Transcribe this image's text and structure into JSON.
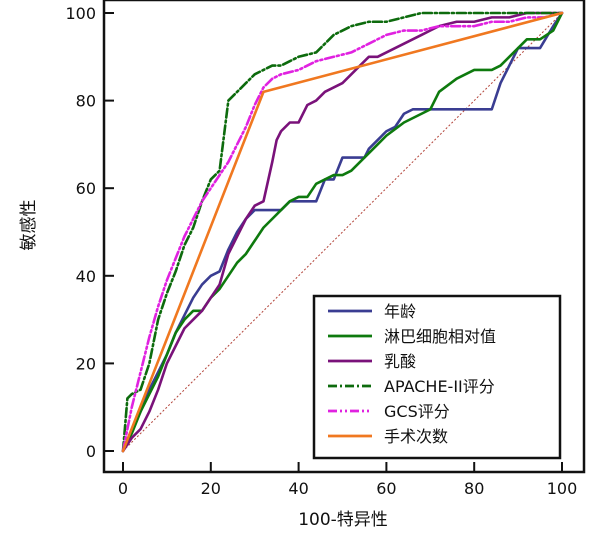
{
  "chart_data": {
    "type": "line",
    "xlabel": "100-特异性",
    "ylabel": "敏感性",
    "xlim": [
      0,
      100
    ],
    "ylim": [
      0,
      100
    ],
    "xticks": [
      0,
      20,
      40,
      60,
      80,
      100
    ],
    "yticks": [
      0,
      20,
      40,
      60,
      80,
      100
    ],
    "grid": false,
    "legend_position": "bottom-right",
    "reference_line": {
      "x": [
        0,
        100
      ],
      "y": [
        0,
        100
      ],
      "style": "dotted",
      "color": "#b3443a"
    },
    "series": [
      {
        "name": "年龄",
        "color": "#3a3d92",
        "dash": "solid",
        "x": [
          0,
          2,
          4,
          6,
          8,
          10,
          12,
          14,
          16,
          18,
          20,
          22,
          24,
          26,
          28,
          30,
          32,
          34,
          36,
          38,
          40,
          42,
          44,
          46,
          48,
          50,
          55,
          56,
          58,
          60,
          62,
          64,
          66,
          70,
          72,
          76,
          80,
          83,
          84,
          86,
          88,
          90,
          92,
          95,
          98,
          100
        ],
        "y": [
          0,
          5,
          9,
          14,
          18,
          22,
          27,
          31,
          35,
          38,
          40,
          41,
          46,
          50,
          53,
          55,
          55,
          55,
          55,
          57,
          57,
          57,
          57,
          62,
          62,
          67,
          67,
          69,
          71,
          73,
          74,
          77,
          78,
          78,
          78,
          78,
          78,
          78,
          78,
          84,
          88,
          92,
          92,
          92,
          97,
          100
        ]
      },
      {
        "name": "淋巴细胞相对值",
        "color": "#0e7a0e",
        "dash": "solid",
        "x": [
          0,
          2,
          4,
          6,
          8,
          10,
          12,
          14,
          16,
          18,
          20,
          22,
          24,
          26,
          28,
          30,
          32,
          34,
          36,
          38,
          40,
          42,
          44,
          46,
          48,
          50,
          52,
          55,
          58,
          60,
          64,
          70,
          72,
          76,
          80,
          84,
          86,
          88,
          90,
          92,
          95,
          98,
          100
        ],
        "y": [
          0,
          4,
          9,
          13,
          17,
          22,
          27,
          30,
          32,
          32,
          35,
          37,
          40,
          43,
          45,
          48,
          51,
          53,
          55,
          57,
          58,
          58,
          61,
          62,
          63,
          63,
          64,
          67,
          70,
          72,
          75,
          78,
          82,
          85,
          87,
          87,
          88,
          90,
          92,
          94,
          94,
          96,
          100
        ]
      },
      {
        "name": "乳酸",
        "color": "#7a127a",
        "dash": "solid",
        "x": [
          0,
          2,
          4,
          6,
          8,
          10,
          12,
          14,
          16,
          18,
          20,
          22,
          24,
          26,
          28,
          30,
          32,
          34,
          35,
          36,
          38,
          40,
          42,
          44,
          46,
          48,
          50,
          52,
          54,
          56,
          58,
          60,
          64,
          68,
          70,
          72,
          76,
          80,
          84,
          88,
          92,
          96,
          100
        ],
        "y": [
          0,
          3,
          5,
          9,
          14,
          20,
          24,
          28,
          30,
          32,
          35,
          38,
          45,
          49,
          53,
          56,
          57,
          66,
          71,
          73,
          75,
          75,
          79,
          80,
          82,
          83,
          84,
          86,
          88,
          90,
          90,
          91,
          93,
          95,
          96,
          97,
          98,
          98,
          99,
          99,
          100,
          100,
          100
        ]
      },
      {
        "name": "APACHE-II评分",
        "color": "#0d6b0d",
        "dash": "dashdot",
        "x": [
          0,
          1,
          2,
          4,
          6,
          8,
          10,
          12,
          14,
          16,
          18,
          20,
          22,
          24,
          26,
          28,
          30,
          32,
          34,
          36,
          38,
          40,
          44,
          48,
          52,
          56,
          60,
          64,
          68,
          72,
          76,
          80,
          90,
          100
        ],
        "y": [
          0,
          12,
          13,
          14,
          20,
          30,
          36,
          41,
          47,
          51,
          57,
          62,
          64,
          80,
          82,
          84,
          86,
          87,
          88,
          88,
          89,
          90,
          91,
          95,
          97,
          98,
          98,
          99,
          100,
          100,
          100,
          100,
          100,
          100
        ]
      },
      {
        "name": "GCS评分",
        "color": "#e022e0",
        "dash": "dashdotdot",
        "x": [
          0,
          2,
          4,
          6,
          8,
          10,
          12,
          14,
          16,
          18,
          20,
          22,
          24,
          26,
          28,
          30,
          32,
          34,
          36,
          40,
          44,
          48,
          52,
          56,
          60,
          64,
          68,
          72,
          76,
          80,
          84,
          88,
          92,
          96,
          100
        ],
        "y": [
          0,
          10,
          18,
          26,
          33,
          39,
          44,
          49,
          53,
          57,
          60,
          63,
          66,
          70,
          74,
          79,
          83,
          85,
          86,
          87,
          89,
          90,
          91,
          93,
          95,
          96,
          96,
          97,
          97,
          97,
          98,
          98,
          99,
          99,
          100
        ]
      },
      {
        "name": "手术次数",
        "color": "#f07820",
        "dash": "solid",
        "x": [
          0,
          32,
          100
        ],
        "y": [
          0,
          82,
          100
        ]
      }
    ]
  }
}
